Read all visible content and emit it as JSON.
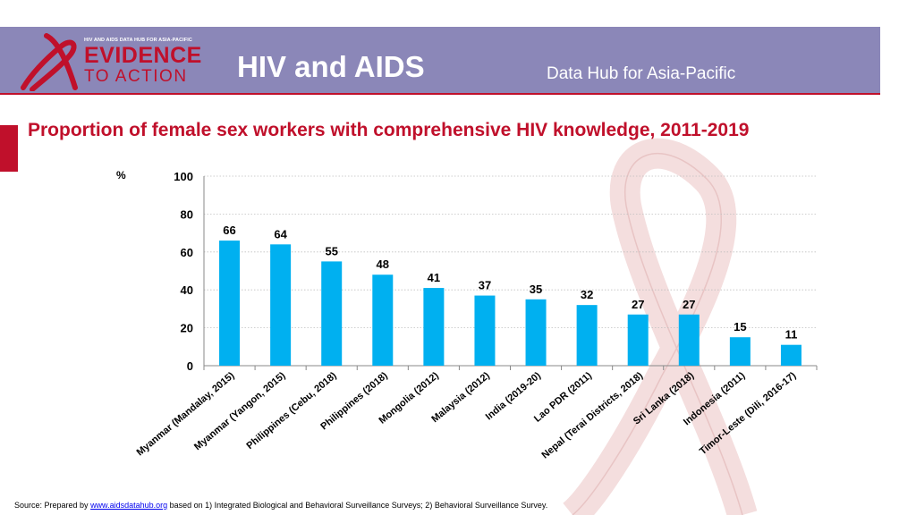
{
  "header": {
    "logo_top": "HIV AND AIDS DATA HUB FOR ASIA-PACIFIC",
    "logo_line1": "EVIDENCE",
    "logo_line2": "TO ACTION",
    "title": "HIV and AIDS",
    "subtitle": "Data Hub for Asia-Pacific"
  },
  "colors": {
    "header_bg": "#8b87b8",
    "accent": "#c0102b",
    "bar": "#00b0f0",
    "ribbon": "#f4dede"
  },
  "source": {
    "prefix": "Source: Prepared by",
    "link": "www.aidsdatahub.org",
    "suffix": "based on 1) Integrated Biological and Behavioral Surveillance Surveys; 2) Behavioral Surveillance Survey."
  },
  "chart_data": {
    "type": "bar",
    "title": "Proportion of female sex workers with comprehensive HIV knowledge, 2011-2019",
    "ylabel": "%",
    "xlabel": "",
    "ylim": [
      0,
      100
    ],
    "yticks": [
      0,
      20,
      40,
      60,
      80,
      100
    ],
    "grid": true,
    "categories": [
      "Myanmar (Mandalay, 2015)",
      "Myanmar (Yangon, 2015)",
      "Philippines (Cebu, 2018)",
      "Philippines (2018)",
      "Mongolia (2012)",
      "Malaysia (2012)",
      "India (2019-20)",
      "Lao PDR (2011)",
      "Nepal (Terai Districts, 2018)",
      "Sri Lanka (2018)",
      "Indonesia (2011)",
      "Timor-Leste (Dili, 2016-17)"
    ],
    "values": [
      66,
      64,
      55,
      48,
      41,
      37,
      35,
      32,
      27,
      27,
      15,
      11
    ]
  }
}
